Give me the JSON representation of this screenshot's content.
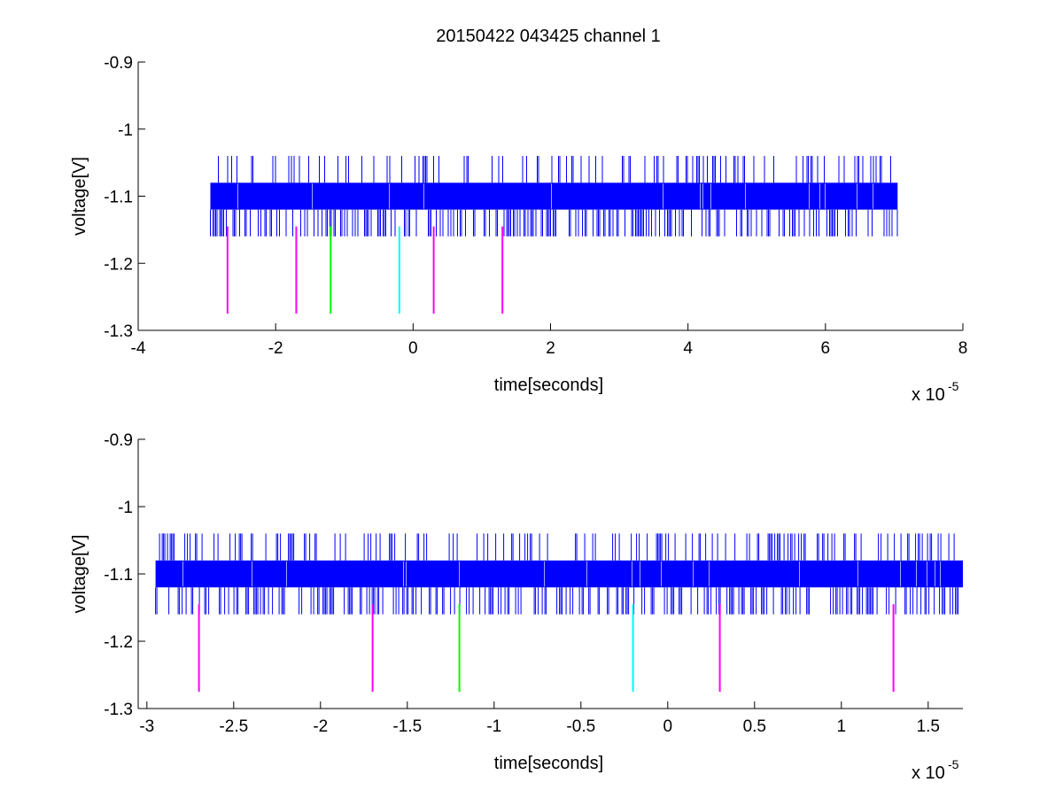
{
  "figure": {
    "title": "20150422 043425 channel 1"
  },
  "chart_data": [
    {
      "type": "line",
      "title": "20150422 043425 channel 1",
      "xlabel": "time[seconds]",
      "ylabel": "voltage[V]",
      "x_multiplier_label": "x 10",
      "x_multiplier_exponent": "-5",
      "xlim": [
        -4,
        8
      ],
      "ylim": [
        -1.3,
        -0.9
      ],
      "x_ticks": [
        -4,
        -2,
        0,
        2,
        4,
        6,
        8
      ],
      "x_tick_labels": [
        "-4",
        "-2",
        "0",
        "2",
        "4",
        "6",
        "8"
      ],
      "y_ticks": [
        -0.9,
        -1,
        -1.1,
        -1.2,
        -1.3
      ],
      "y_tick_labels": [
        "-0.9",
        "-1",
        "-1.1",
        "-1.2",
        "-1.3"
      ],
      "grid": false,
      "series": [
        {
          "color": "#0000ff",
          "x_range": [
            -2.95,
            7.05
          ],
          "level_band": [
            -1.12,
            -1.08
          ],
          "spike_high": -1.04,
          "spike_low": -1.16
        }
      ],
      "markers": [
        {
          "x": -2.7,
          "y_top": -1.145,
          "y_bottom": -1.275,
          "color": "#ff00ff"
        },
        {
          "x": -1.7,
          "y_top": -1.145,
          "y_bottom": -1.275,
          "color": "#ff00ff"
        },
        {
          "x": -1.2,
          "y_top": -1.145,
          "y_bottom": -1.275,
          "color": "#00ff00"
        },
        {
          "x": -0.2,
          "y_top": -1.145,
          "y_bottom": -1.275,
          "color": "#00ffff"
        },
        {
          "x": 0.3,
          "y_top": -1.145,
          "y_bottom": -1.275,
          "color": "#ff00ff"
        },
        {
          "x": 1.3,
          "y_top": -1.145,
          "y_bottom": -1.275,
          "color": "#ff00ff"
        }
      ]
    },
    {
      "type": "line",
      "xlabel": "time[seconds]",
      "ylabel": "voltage[V]",
      "x_multiplier_label": "x 10",
      "x_multiplier_exponent": "-5",
      "xlim": [
        -3.05,
        1.7
      ],
      "ylim": [
        -1.3,
        -0.9
      ],
      "x_ticks": [
        -3,
        -2.5,
        -2,
        -1.5,
        -1,
        -0.5,
        0,
        0.5,
        1,
        1.5
      ],
      "x_tick_labels": [
        "-3",
        "-2.5",
        "-2",
        "-1.5",
        "-1",
        "-0.5",
        "0",
        "0.5",
        "1",
        "1.5"
      ],
      "y_ticks": [
        -0.9,
        -1,
        -1.1,
        -1.2,
        -1.3
      ],
      "y_tick_labels": [
        "-0.9",
        "-1",
        "-1.1",
        "-1.2",
        "-1.3"
      ],
      "grid": false,
      "series": [
        {
          "color": "#0000ff",
          "x_range": [
            -2.95,
            1.7
          ],
          "level_band": [
            -1.12,
            -1.08
          ],
          "spike_high": -1.04,
          "spike_low": -1.16
        }
      ],
      "markers": [
        {
          "x": -2.7,
          "y_top": -1.145,
          "y_bottom": -1.275,
          "color": "#ff00ff"
        },
        {
          "x": -1.7,
          "y_top": -1.145,
          "y_bottom": -1.275,
          "color": "#ff00ff"
        },
        {
          "x": -1.2,
          "y_top": -1.145,
          "y_bottom": -1.275,
          "color": "#00ff00"
        },
        {
          "x": -0.2,
          "y_top": -1.145,
          "y_bottom": -1.275,
          "color": "#00ffff"
        },
        {
          "x": 0.3,
          "y_top": -1.145,
          "y_bottom": -1.275,
          "color": "#ff00ff"
        },
        {
          "x": 1.3,
          "y_top": -1.145,
          "y_bottom": -1.275,
          "color": "#ff00ff"
        }
      ]
    }
  ]
}
